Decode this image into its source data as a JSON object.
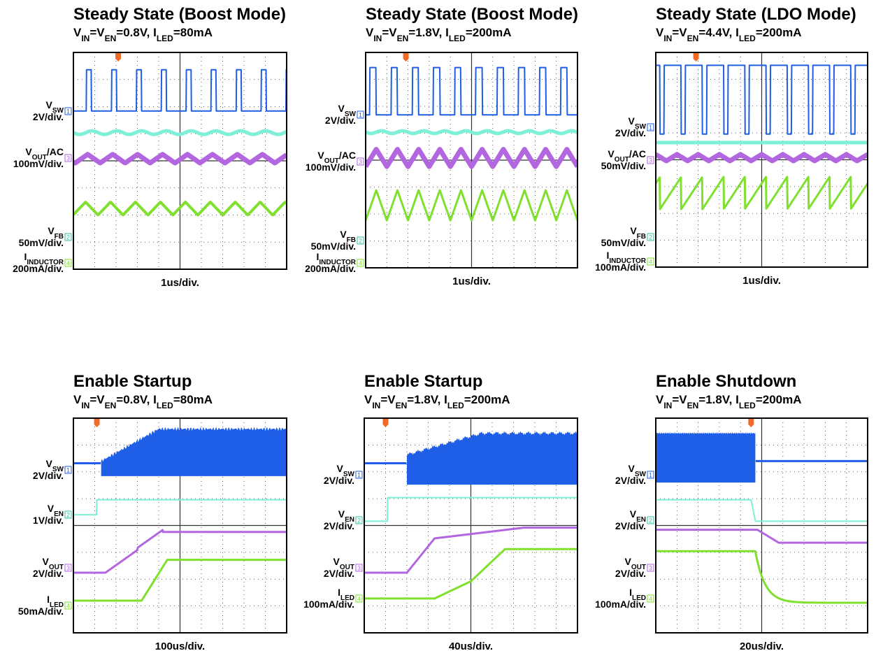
{
  "panels": [
    {
      "title": "Steady State (Boost Mode)",
      "subtitle": [
        "V",
        "IN",
        "=V",
        "EN",
        "=0.8V, I",
        "LED",
        "=80mA"
      ],
      "time_scale": "1us/div.",
      "labels": [
        {
          "name": [
            "V",
            "SW"
          ],
          "scale": "2V/div.",
          "channel": "1"
        },
        {
          "name": [
            "V",
            "OUT",
            "/AC"
          ],
          "scale": "100mV/div.",
          "channel": "3"
        },
        {
          "name": [
            "V",
            "FB"
          ],
          "scale": "50mV/div.",
          "channel": "2"
        },
        {
          "name": [
            "I",
            "INDUCTOR"
          ],
          "scale": "200mA/div.",
          "channel": "4"
        }
      ]
    },
    {
      "title": "Steady State (Boost Mode)",
      "subtitle": [
        "V",
        "IN",
        "=V",
        "EN",
        "=1.8V, I",
        "LED",
        "=200mA"
      ],
      "time_scale": "1us/div.",
      "labels": [
        {
          "name": [
            "V",
            "SW"
          ],
          "scale": "2V/div.",
          "channel": "1"
        },
        {
          "name": [
            "V",
            "OUT",
            "/AC"
          ],
          "scale": "100mV/div.",
          "channel": "3"
        },
        {
          "name": [
            "V",
            "FB"
          ],
          "scale": "50mV/div.",
          "channel": "2"
        },
        {
          "name": [
            "I",
            "INDUCTOR"
          ],
          "scale": "200mA/div.",
          "channel": "4"
        }
      ]
    },
    {
      "title": "Steady State (LDO Mode)",
      "subtitle": [
        "V",
        "IN",
        "=V",
        "EN",
        "=4.4V, I",
        "LED",
        "=200mA"
      ],
      "time_scale": "1us/div.",
      "labels": [
        {
          "name": [
            "V",
            "SW"
          ],
          "scale": "2V/div.",
          "channel": "1"
        },
        {
          "name": [
            "V",
            "OUT",
            "/AC"
          ],
          "scale": "50mV/div.",
          "channel": "3"
        },
        {
          "name": [
            "V",
            "FB"
          ],
          "scale": "50mV/div.",
          "channel": "2"
        },
        {
          "name": [
            "I",
            "INDUCTOR"
          ],
          "scale": "100mA/div.",
          "channel": "4"
        }
      ]
    },
    {
      "title": "Enable Startup",
      "subtitle": [
        "V",
        "IN",
        "=V",
        "EN",
        "=0.8V, I",
        "LED",
        "=80mA"
      ],
      "time_scale": "100us/div.",
      "labels": [
        {
          "name": [
            "V",
            "SW"
          ],
          "scale": "2V/div.",
          "channel": "1"
        },
        {
          "name": [
            "V",
            "EN"
          ],
          "scale": "1V/div.",
          "channel": "2"
        },
        {
          "name": [
            "V",
            "OUT"
          ],
          "scale": "2V/div.",
          "channel": "3"
        },
        {
          "name": [
            "I",
            "LED"
          ],
          "scale": "50mA/div.",
          "channel": "4"
        }
      ]
    },
    {
      "title": "Enable Startup",
      "subtitle": [
        "V",
        "IN",
        "=V",
        "EN",
        "=1.8V, I",
        "LED",
        "=200mA"
      ],
      "time_scale": "40us/div.",
      "labels": [
        {
          "name": [
            "V",
            "SW"
          ],
          "scale": "2V/div.",
          "channel": "1"
        },
        {
          "name": [
            "V",
            "EN"
          ],
          "scale": "2V/div.",
          "channel": "2"
        },
        {
          "name": [
            "V",
            "OUT"
          ],
          "scale": "2V/div.",
          "channel": "3"
        },
        {
          "name": [
            "I",
            "LED"
          ],
          "scale": "100mA/div.",
          "channel": "4"
        }
      ]
    },
    {
      "title": "Enable Shutdown",
      "subtitle": [
        "V",
        "IN",
        "=V",
        "EN",
        "=1.8V, I",
        "LED",
        "=200mA"
      ],
      "time_scale": "20us/div.",
      "labels": [
        {
          "name": [
            "V",
            "SW"
          ],
          "scale": "2V/div.",
          "channel": "1"
        },
        {
          "name": [
            "V",
            "EN"
          ],
          "scale": "2V/div.",
          "channel": "2"
        },
        {
          "name": [
            "V",
            "OUT"
          ],
          "scale": "2V/div.",
          "channel": "3"
        },
        {
          "name": [
            "I",
            "LED"
          ],
          "scale": "100mA/div.",
          "channel": "4"
        }
      ]
    }
  ]
}
